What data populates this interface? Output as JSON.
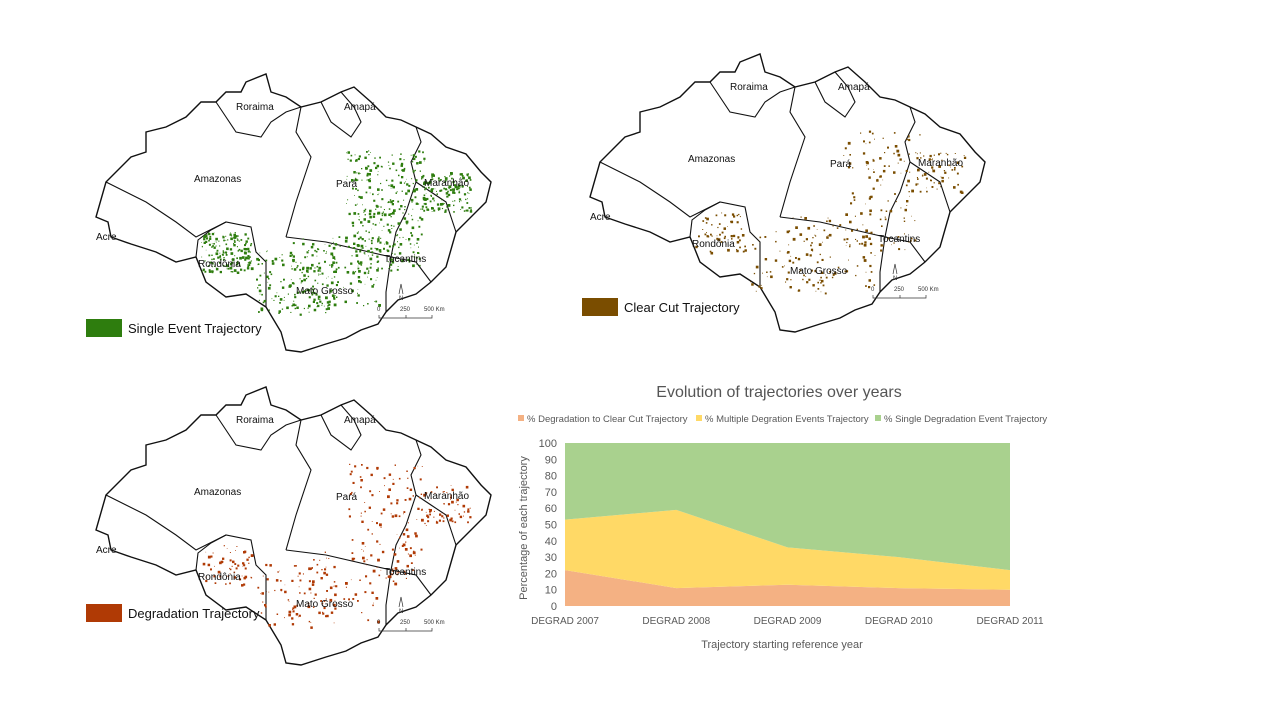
{
  "maps": [
    {
      "id": "single",
      "legend_label": "Single Event Trajectory",
      "color": "#2e7d0e",
      "states": {
        "roraima": "Roraima",
        "amapa": "Amapá",
        "amazonas": "Amazonas",
        "para": "Pará",
        "maranhao": "Maranhão",
        "acre": "Acre",
        "rondonia": "Rondônia",
        "tocantins": "Tocantins",
        "mato_grosso": "Mato Grosso"
      },
      "scale": {
        "zero": "0",
        "mid": "250",
        "end": "500 Km",
        "north": "N"
      }
    },
    {
      "id": "clearcut",
      "legend_label": "Clear Cut Trajectory",
      "color": "#7a4d00",
      "states": {
        "roraima": "Roraima",
        "amapa": "Amapá",
        "amazonas": "Amazonas",
        "para": "Pará",
        "maranhao": "Maranhão",
        "acre": "Acre",
        "rondonia": "Rondônia",
        "tocantins": "Tocantins",
        "mato_grosso": "Mato Grosso"
      },
      "scale": {
        "zero": "0",
        "mid": "250",
        "end": "500 Km",
        "north": "N"
      }
    },
    {
      "id": "degradation",
      "legend_label": "Degradation Trajectory",
      "color": "#b03a05",
      "states": {
        "roraima": "Roraima",
        "amapa": "Amapá",
        "amazonas": "Amazonas",
        "para": "Pará",
        "maranhao": "Maranhão",
        "acre": "Acre",
        "rondonia": "Rondônia",
        "tocantins": "Tocantins",
        "mato_grosso": "Mato Grosso"
      },
      "scale": {
        "zero": "0",
        "mid": "250",
        "end": "500 Km",
        "north": "N"
      }
    }
  ],
  "chart_data": {
    "type": "area",
    "stacked": true,
    "title": "Evolution of trajectories over years",
    "xlabel": "Trajectory starting reference year",
    "ylabel": "Percentage of each trajectory",
    "categories": [
      "DEGRAD 2007",
      "DEGRAD 2008",
      "DEGRAD 2009",
      "DEGRAD 2010",
      "DEGRAD 2011"
    ],
    "ylim": [
      0,
      100
    ],
    "yticks": [
      "0",
      "10",
      "20",
      "30",
      "40",
      "50",
      "60",
      "70",
      "80",
      "90",
      "100"
    ],
    "legend_position": "top",
    "series": [
      {
        "name": "% Degradation to Clear Cut Trajectory",
        "color": "#f4b183",
        "values": [
          22,
          11,
          13,
          11,
          10
        ]
      },
      {
        "name": "% Multiple Degration Events Trajectory",
        "color": "#ffd966",
        "values": [
          31,
          48,
          23,
          19,
          12
        ]
      },
      {
        "name": "% Single Degradation Event Trajectory",
        "color": "#a9d18e",
        "values": [
          47,
          41,
          64,
          70,
          78
        ]
      }
    ]
  }
}
